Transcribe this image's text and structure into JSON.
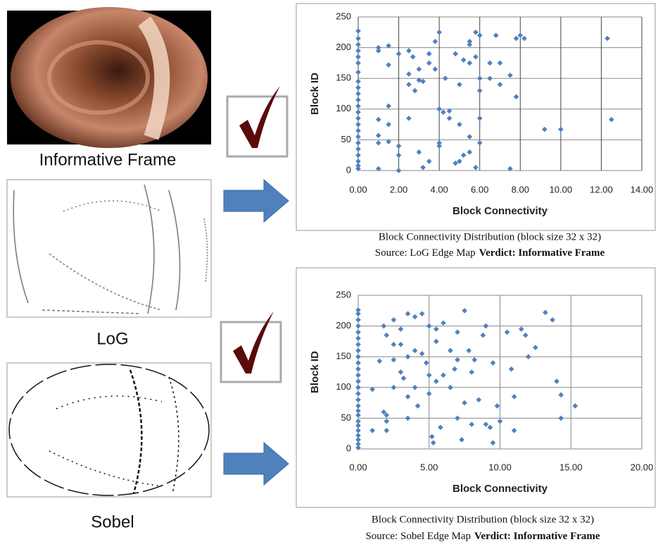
{
  "image_labels": [
    "Informative Frame",
    "LoG",
    "Sobel"
  ],
  "chart_data": [
    {
      "type": "scatter",
      "x_label": "Block Connectivity",
      "y_label": "Block ID",
      "caption": "Block Connectivity Distribution (block size 32 x 32)",
      "source": "Source: LoG Edge Map",
      "verdict": "Verdict: Informative Frame",
      "color": "#4f81bd",
      "grid": true,
      "xlim": [
        0,
        14
      ],
      "ylim": [
        0,
        250
      ],
      "xticks": [
        {
          "value": 0,
          "label": "0.00"
        },
        {
          "value": 2,
          "label": "2.00"
        },
        {
          "value": 4,
          "label": "4.00"
        },
        {
          "value": 6,
          "label": "6.00"
        },
        {
          "value": 8,
          "label": "8.00"
        },
        {
          "value": 10,
          "label": "10.00"
        },
        {
          "value": 12,
          "label": "12.00"
        },
        {
          "value": 14,
          "label": "14.00"
        }
      ],
      "yticks": [
        0,
        50,
        100,
        150,
        200,
        250
      ],
      "x": [
        0,
        0,
        0,
        0,
        0,
        0,
        0,
        0,
        0,
        0,
        0,
        0,
        0,
        0,
        0,
        0,
        0,
        0,
        0,
        0,
        0,
        0,
        0,
        1,
        1,
        1.5,
        1.5,
        1,
        1.5,
        1.5,
        1,
        1,
        1,
        1.5,
        2,
        2,
        2,
        2,
        2.5,
        2.5,
        2.7,
        3,
        3,
        2.8,
        3.2,
        3.5,
        3.5,
        3.8,
        3.8,
        2.5,
        2.5,
        3,
        3.2,
        3.5,
        4,
        4,
        4.2,
        4,
        4,
        4.3,
        4.5,
        4.5,
        4.8,
        5,
        5,
        5.2,
        5.5,
        5.5,
        5.5,
        5.8,
        6,
        5.8,
        6,
        6,
        6,
        6,
        5.5,
        5.5,
        5.2,
        5,
        4.8,
        5.8,
        6.5,
        6.5,
        6.8,
        7,
        7,
        7.5,
        7.5,
        7.8,
        7.8,
        8,
        8.2,
        9.2,
        10,
        12.3,
        12.5
      ],
      "values": [
        3,
        8,
        15,
        25,
        35,
        45,
        55,
        65,
        75,
        85,
        95,
        105,
        115,
        125,
        135,
        145,
        160,
        175,
        185,
        195,
        205,
        215,
        227,
        200,
        195,
        203,
        172,
        83,
        105,
        75,
        57,
        45,
        3,
        47,
        40,
        0,
        25,
        190,
        157,
        195,
        185,
        165,
        147,
        130,
        145,
        190,
        175,
        210,
        165,
        140,
        85,
        30,
        5,
        15,
        225,
        100,
        95,
        40,
        45,
        150,
        97,
        85,
        190,
        75,
        140,
        180,
        210,
        175,
        205,
        225,
        220,
        185,
        150,
        130,
        85,
        45,
        55,
        30,
        25,
        15,
        12,
        5,
        150,
        175,
        220,
        140,
        175,
        155,
        3,
        120,
        215,
        220,
        215,
        67,
        67,
        215,
        83
      ]
    },
    {
      "type": "scatter",
      "x_label": "Block Connectivity",
      "y_label": "Block ID",
      "caption": "Block Connectivity Distribution (block size 32 x 32)",
      "source": "Source: Sobel Edge Map",
      "verdict": "Verdict: Informative Frame",
      "color": "#4f81bd",
      "grid": true,
      "xlim": [
        0,
        20
      ],
      "ylim": [
        0,
        250
      ],
      "xticks": [
        {
          "value": 0,
          "label": "0.00"
        },
        {
          "value": 5,
          "label": "5.00"
        },
        {
          "value": 10,
          "label": "10.00"
        },
        {
          "value": 15,
          "label": "15.00"
        },
        {
          "value": 20,
          "label": "20.00"
        }
      ],
      "yticks": [
        0,
        50,
        100,
        150,
        200,
        250
      ],
      "x": [
        0,
        0,
        0,
        0,
        0,
        0,
        0,
        0,
        0,
        0,
        0,
        0,
        0,
        0,
        0,
        0,
        0,
        0,
        0,
        0,
        0,
        0,
        0,
        0,
        0,
        0,
        1,
        1,
        1.5,
        1.8,
        2,
        1.8,
        2,
        2,
        2,
        2.5,
        2.5,
        2.5,
        2.5,
        3,
        3,
        3,
        3.5,
        3.5,
        3.2,
        3.5,
        3.5,
        4,
        4,
        4,
        4.2,
        4.5,
        4.5,
        4.8,
        5,
        5,
        5,
        5.2,
        5.3,
        5.5,
        5.5,
        5.5,
        5.8,
        6,
        6,
        6.5,
        6.5,
        6.8,
        7,
        7,
        7,
        7.3,
        7.5,
        7.5,
        7.8,
        8,
        8,
        8.2,
        8.5,
        8.8,
        9,
        9,
        9.3,
        9.5,
        9.5,
        9.8,
        10,
        10.5,
        10.8,
        11,
        11,
        11.5,
        11.8,
        12,
        12.5,
        13.2,
        13.7,
        14,
        14.3,
        14.3,
        15.3
      ],
      "values": [
        2,
        8,
        15,
        22,
        30,
        38,
        45,
        55,
        62,
        70,
        80,
        90,
        100,
        110,
        120,
        130,
        140,
        150,
        160,
        170,
        180,
        190,
        200,
        210,
        220,
        226,
        97,
        30,
        143,
        200,
        185,
        60,
        55,
        45,
        30,
        210,
        170,
        145,
        100,
        195,
        170,
        125,
        220,
        150,
        115,
        85,
        50,
        215,
        160,
        100,
        70,
        220,
        155,
        140,
        200,
        120,
        90,
        20,
        10,
        195,
        175,
        110,
        35,
        120,
        205,
        160,
        100,
        130,
        190,
        145,
        50,
        15,
        225,
        75,
        160,
        125,
        40,
        145,
        80,
        185,
        200,
        40,
        35,
        140,
        10,
        70,
        45,
        190,
        130,
        85,
        30,
        195,
        185,
        150,
        165,
        222,
        210,
        110,
        88,
        50,
        70
      ]
    }
  ]
}
